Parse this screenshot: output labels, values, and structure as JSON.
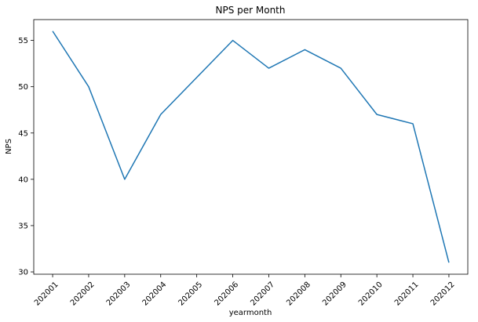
{
  "chart_data": {
    "type": "line",
    "title": "NPS per Month",
    "xlabel": "yearmonth",
    "ylabel": "NPS",
    "categories": [
      "202001",
      "202002",
      "202003",
      "202004",
      "202005",
      "202006",
      "202007",
      "202008",
      "202009",
      "202010",
      "202011",
      "202012"
    ],
    "series": [
      {
        "values": [
          56,
          50,
          40,
          47,
          51,
          55,
          52,
          54,
          52,
          47,
          46,
          31
        ],
        "color": "#1f77b4"
      }
    ],
    "ylim": [
      29.75,
      57.25
    ],
    "yticks": [
      30,
      35,
      40,
      45,
      50,
      55
    ],
    "grid": false,
    "legend": "none"
  }
}
